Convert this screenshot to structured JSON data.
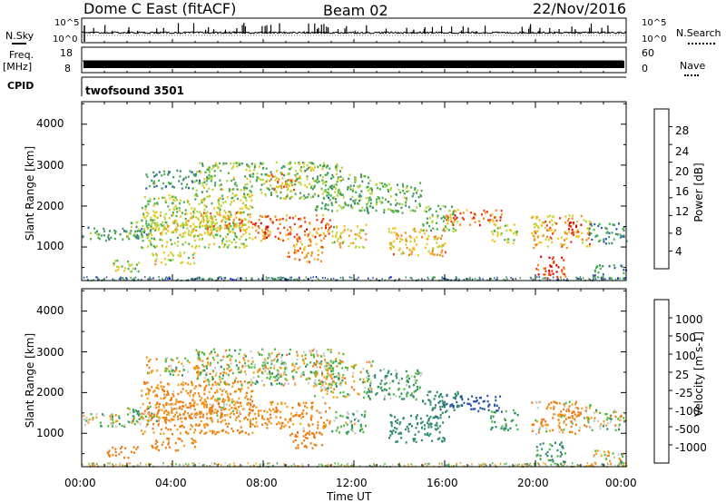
{
  "header": {
    "station": "Dome C East (fitACF)",
    "beam": "Beam 02",
    "date": "22/Nov/2016"
  },
  "strips": {
    "nsky_label": "N.Sky",
    "nsky_ticks": [
      "10^5",
      "10^0"
    ],
    "nsearch_label": "N.Search",
    "nsearch_ticks": [
      "10^5",
      "10^0"
    ],
    "freq_label": "Freq.",
    "freq_unit": "[MHz]",
    "freq_ticks": [
      "18",
      "8"
    ],
    "nave_label": "Nave",
    "nave_ticks": [
      "60",
      "0"
    ],
    "cpid_label": "CPID",
    "cpid_value": "twofsound 3501"
  },
  "colors": {
    "power_scale": [
      "#0000ff",
      "#2a5aa8",
      "#3f8f6a",
      "#45b04a",
      "#b8d63a",
      "#f2c21a",
      "#f08a18",
      "#ea3a12",
      "#dd0000"
    ],
    "velocity_scale": [
      "#0000ff",
      "#2a56a6",
      "#2f8a6a",
      "#4aba3c",
      "#c8c8c8",
      "#f2a018",
      "#f07a10",
      "#e04010",
      "#ee0000"
    ],
    "nsky_color": "#000000"
  },
  "chart_data": [
    {
      "type": "heatmap",
      "quantity": "Power",
      "ylabel": "Slant Range [km]",
      "y_ticks": [
        "1000",
        "2000",
        "3000",
        "4000"
      ],
      "ylim": [
        180,
        4550
      ],
      "x_ticks": [
        "00:00",
        "04:00",
        "08:00",
        "12:00",
        "16:00",
        "20:00",
        "00:00"
      ],
      "xlim_hours": [
        0,
        24
      ],
      "colorbar": {
        "label": "Power [dB]",
        "ticks": [
          "28",
          "24",
          "20",
          "16",
          "12",
          "8",
          "4"
        ],
        "range": [
          0,
          32
        ]
      },
      "echo_regions": [
        {
          "t0": 0.0,
          "t1": 3.0,
          "r0": 1180,
          "r1": 1520,
          "value": 10
        },
        {
          "t0": 1.0,
          "t1": 2.5,
          "r0": 420,
          "r1": 700,
          "value": 15
        },
        {
          "t0": 2.0,
          "t1": 3.3,
          "r0": 1250,
          "r1": 1700,
          "value": 14
        },
        {
          "t0": 2.6,
          "t1": 7.5,
          "r0": 1000,
          "r1": 2300,
          "value": 16
        },
        {
          "t0": 2.8,
          "t1": 5.5,
          "r0": 2450,
          "r1": 2900,
          "value": 10
        },
        {
          "t0": 3.0,
          "t1": 5.0,
          "r0": 600,
          "r1": 900,
          "value": 18
        },
        {
          "t0": 3.3,
          "t1": 6.0,
          "r0": 1300,
          "r1": 1800,
          "value": 19
        },
        {
          "t0": 5.0,
          "t1": 11.5,
          "r0": 2200,
          "r1": 3100,
          "value": 14
        },
        {
          "t0": 5.3,
          "t1": 7.5,
          "r0": 1400,
          "r1": 1900,
          "value": 22
        },
        {
          "t0": 7.5,
          "t1": 11.0,
          "r0": 1150,
          "r1": 1800,
          "value": 24
        },
        {
          "t0": 8.0,
          "t1": 9.5,
          "r0": 2400,
          "r1": 2800,
          "value": 22
        },
        {
          "t0": 9.0,
          "t1": 10.6,
          "r0": 650,
          "r1": 1100,
          "value": 22
        },
        {
          "t0": 10.2,
          "t1": 12.8,
          "r0": 1900,
          "r1": 2800,
          "value": 12
        },
        {
          "t0": 11.0,
          "t1": 12.5,
          "r0": 1000,
          "r1": 1600,
          "value": 18
        },
        {
          "t0": 12.5,
          "t1": 15.0,
          "r0": 1850,
          "r1": 2600,
          "value": 13
        },
        {
          "t0": 13.5,
          "t1": 16.0,
          "r0": 800,
          "r1": 1500,
          "value": 20
        },
        {
          "t0": 15.0,
          "t1": 16.6,
          "r0": 1400,
          "r1": 2050,
          "value": 12
        },
        {
          "t0": 16.0,
          "t1": 18.5,
          "r0": 1550,
          "r1": 1950,
          "value": 24
        },
        {
          "t0": 18.0,
          "t1": 19.2,
          "r0": 1100,
          "r1": 1600,
          "value": 17
        },
        {
          "t0": 19.8,
          "t1": 22.4,
          "r0": 1000,
          "r1": 1800,
          "value": 21
        },
        {
          "t0": 20.0,
          "t1": 21.3,
          "r0": 250,
          "r1": 800,
          "value": 27
        },
        {
          "t0": 21.2,
          "t1": 22.0,
          "r0": 1300,
          "r1": 1650,
          "value": 28
        },
        {
          "t0": 22.3,
          "t1": 24.0,
          "r0": 1100,
          "r1": 1600,
          "value": 9
        },
        {
          "t0": 22.5,
          "t1": 24.0,
          "r0": 250,
          "r1": 600,
          "value": 9
        }
      ]
    },
    {
      "type": "heatmap",
      "quantity": "Velocity",
      "ylabel": "Slant Range [km]",
      "y_ticks": [
        "1000",
        "2000",
        "3000",
        "4000"
      ],
      "ylim": [
        180,
        4550
      ],
      "x_ticks": [
        "00:00",
        "04:00",
        "08:00",
        "12:00",
        "16:00",
        "20:00",
        "00:00"
      ],
      "xlim_hours": [
        0,
        24
      ],
      "xlabel": "Time UT",
      "colorbar": {
        "label": "Velocity [m s-1]",
        "ticks": [
          "1000",
          "500",
          "100",
          "25",
          "-25",
          "-100",
          "-500",
          "-1000"
        ]
      },
      "echo_regions": [
        {
          "t0": 0.0,
          "t1": 3.0,
          "r0": 1180,
          "r1": 1520,
          "value": 0
        },
        {
          "t0": 1.0,
          "t1": 2.5,
          "r0": 420,
          "r1": 700,
          "value": -300
        },
        {
          "t0": 2.0,
          "t1": 3.3,
          "r0": 1250,
          "r1": 1700,
          "value": 80
        },
        {
          "t0": 2.6,
          "t1": 7.5,
          "r0": 1000,
          "r1": 2300,
          "value": -150
        },
        {
          "t0": 2.8,
          "t1": 5.5,
          "r0": 2450,
          "r1": 2900,
          "value": 0
        },
        {
          "t0": 3.0,
          "t1": 5.0,
          "r0": 600,
          "r1": 900,
          "value": -200
        },
        {
          "t0": 3.3,
          "t1": 6.0,
          "r0": 1300,
          "r1": 1800,
          "value": -120
        },
        {
          "t0": 5.0,
          "t1": 11.5,
          "r0": 2200,
          "r1": 3100,
          "value": 0
        },
        {
          "t0": 5.3,
          "t1": 7.5,
          "r0": 1400,
          "r1": 1900,
          "value": -60
        },
        {
          "t0": 7.5,
          "t1": 11.0,
          "r0": 1150,
          "r1": 1800,
          "value": -150
        },
        {
          "t0": 8.0,
          "t1": 9.5,
          "r0": 2400,
          "r1": 2800,
          "value": 0
        },
        {
          "t0": 9.0,
          "t1": 10.6,
          "r0": 650,
          "r1": 1100,
          "value": -250
        },
        {
          "t0": 10.2,
          "t1": 12.8,
          "r0": 1900,
          "r1": 2800,
          "value": 0
        },
        {
          "t0": 11.0,
          "t1": 12.5,
          "r0": 1000,
          "r1": 1600,
          "value": 90
        },
        {
          "t0": 12.5,
          "t1": 15.0,
          "r0": 1850,
          "r1": 2600,
          "value": 120
        },
        {
          "t0": 13.5,
          "t1": 16.0,
          "r0": 800,
          "r1": 1500,
          "value": 300
        },
        {
          "t0": 15.0,
          "t1": 16.6,
          "r0": 1400,
          "r1": 2050,
          "value": 400
        },
        {
          "t0": 16.0,
          "t1": 18.5,
          "r0": 1550,
          "r1": 1950,
          "value": 700
        },
        {
          "t0": 18.0,
          "t1": 19.2,
          "r0": 1100,
          "r1": 1600,
          "value": 150
        },
        {
          "t0": 19.8,
          "t1": 22.4,
          "r0": 1000,
          "r1": 1800,
          "value": -80
        },
        {
          "t0": 20.0,
          "t1": 21.3,
          "r0": 250,
          "r1": 800,
          "value": 200
        },
        {
          "t0": 21.2,
          "t1": 22.0,
          "r0": 1300,
          "r1": 1650,
          "value": -300
        },
        {
          "t0": 22.3,
          "t1": 24.0,
          "r0": 1100,
          "r1": 1600,
          "value": 0
        },
        {
          "t0": 22.5,
          "t1": 24.0,
          "r0": 250,
          "r1": 600,
          "value": 0
        }
      ]
    }
  ]
}
